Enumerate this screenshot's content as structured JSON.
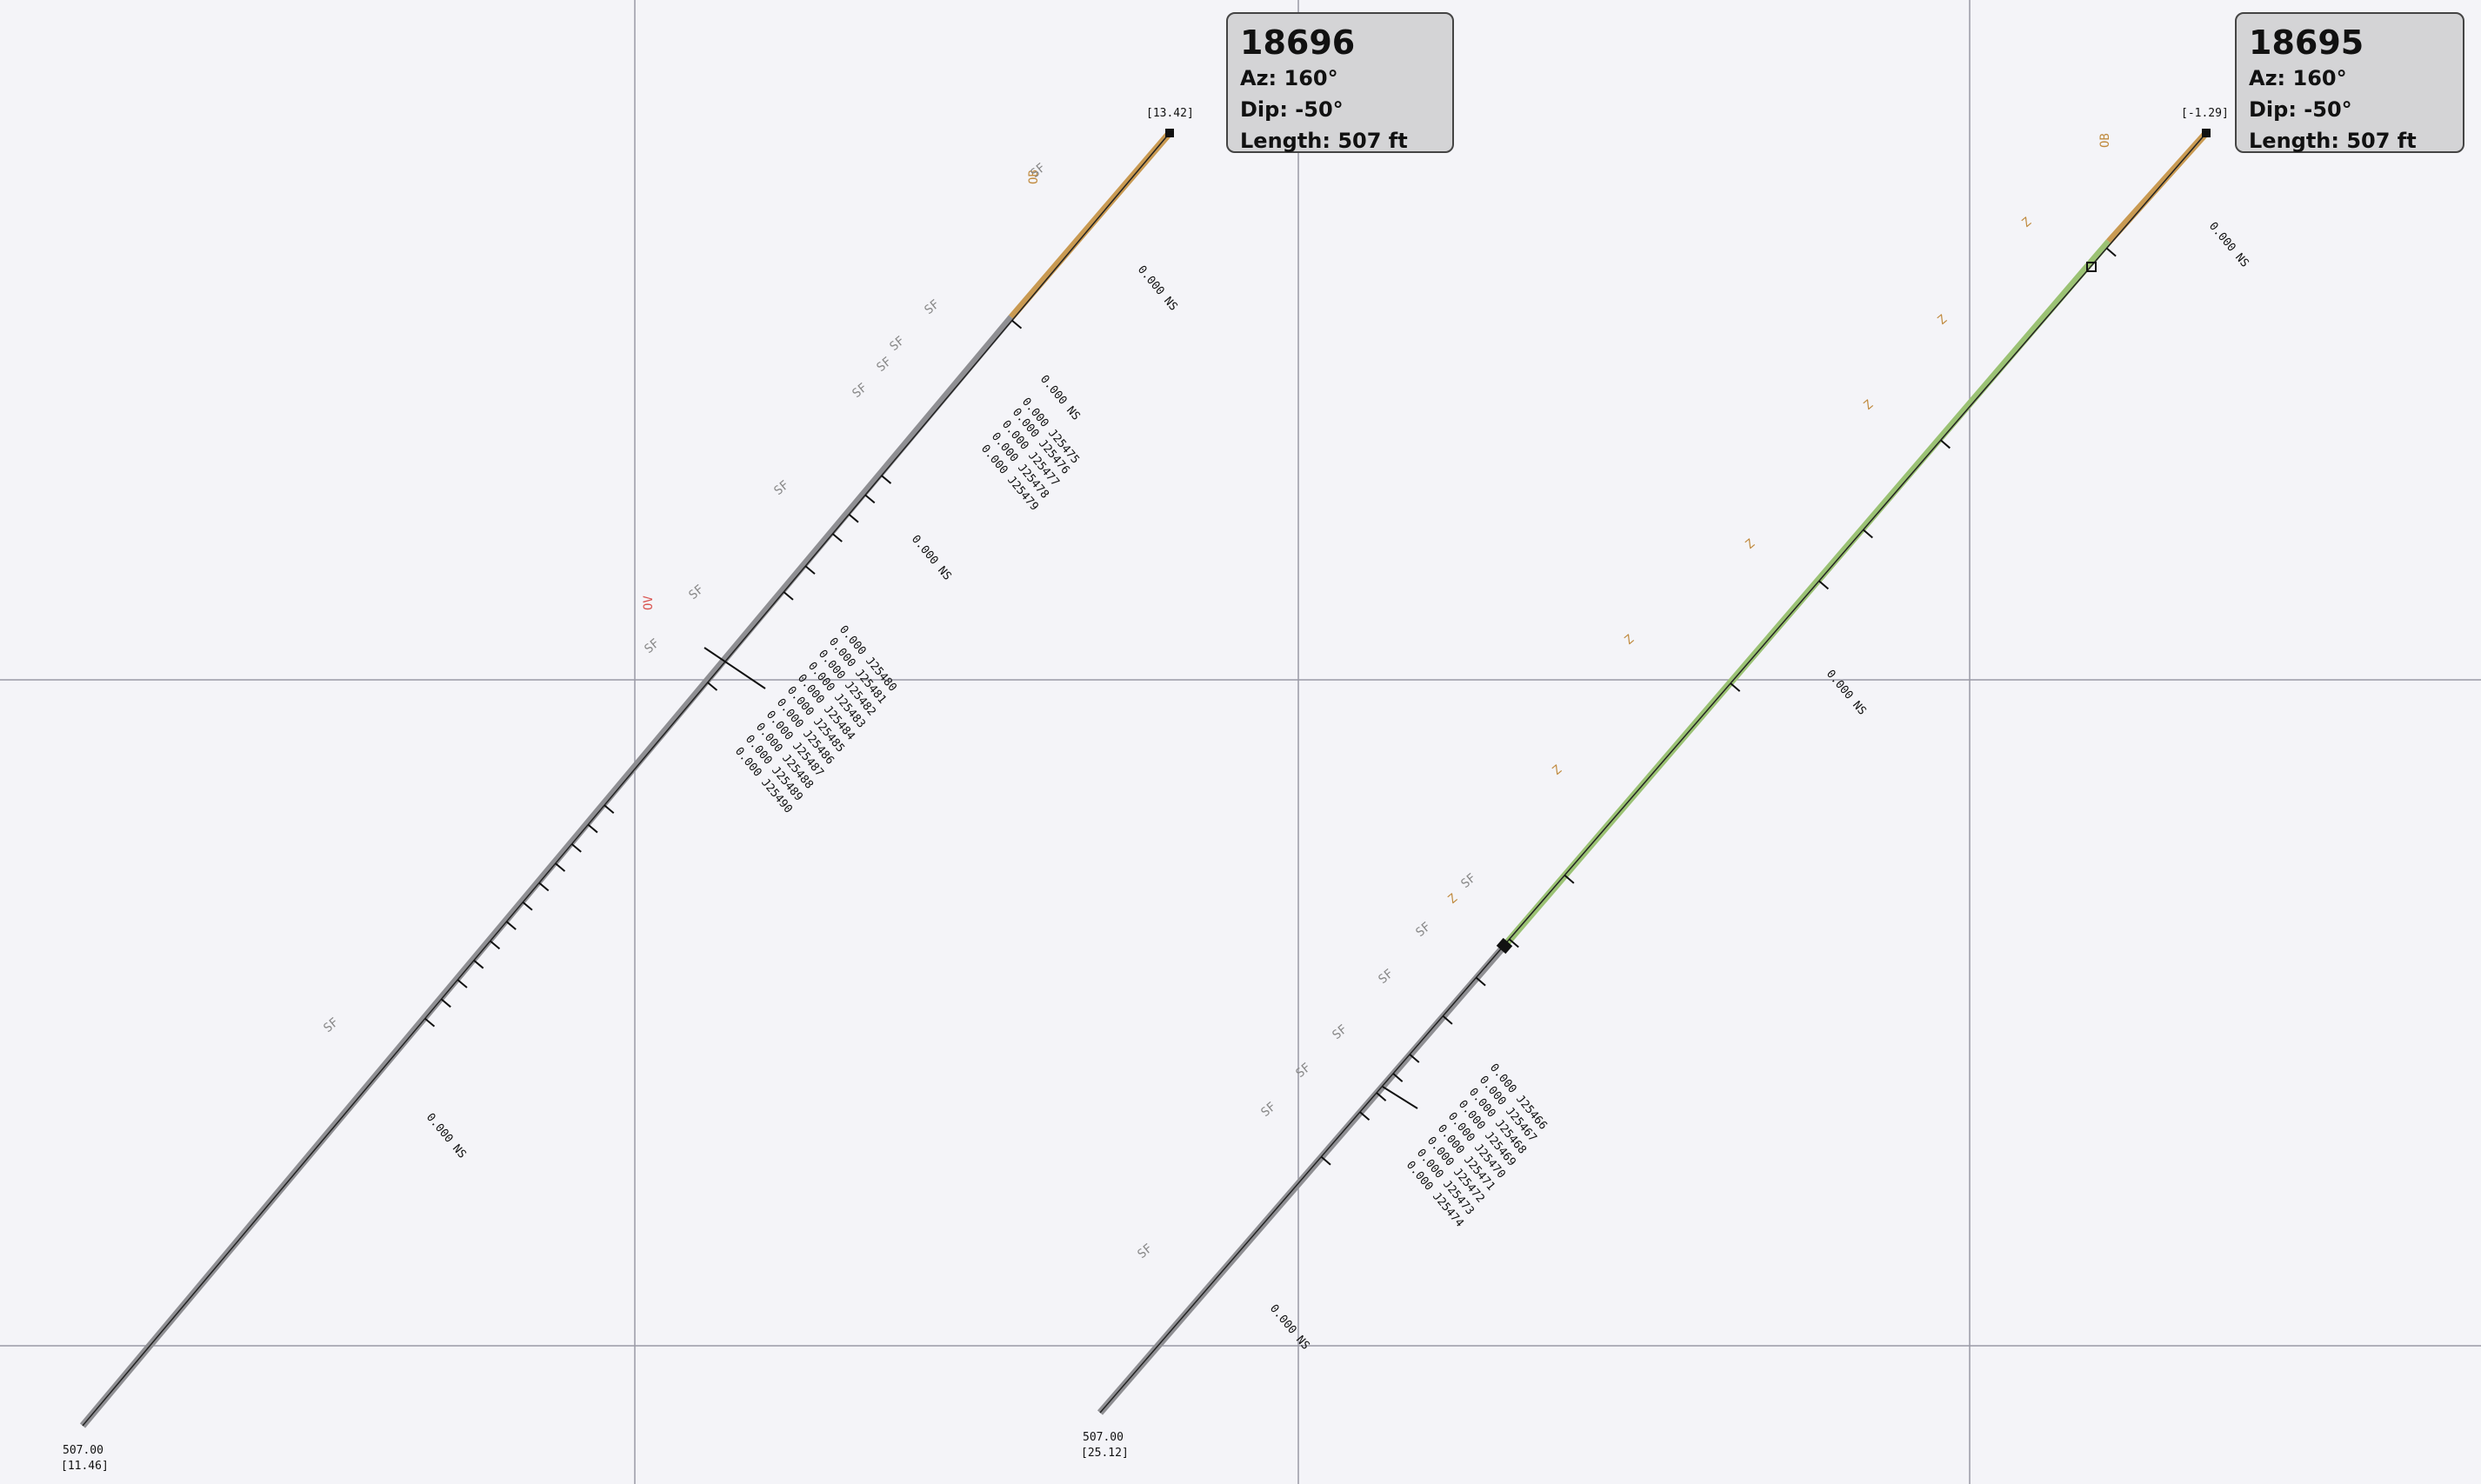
{
  "grid": {
    "color": "#9a9aa6"
  },
  "holes": [
    {
      "id": "18696",
      "az": "Az: 160°",
      "dip": "Dip: -50°",
      "length": "Length: 507 ft",
      "collar_label": "[13.42]",
      "end_depth": "507.00",
      "end_elev": "[11.46]",
      "colors": {
        "top": "#c99a52",
        "body": "#8f8f93"
      },
      "side_labels": [
        "SF",
        "SF",
        "SF",
        "SF",
        "SF",
        "SF",
        "SF",
        "SF",
        "SF"
      ],
      "red_label": "OV",
      "orange_label": "OB",
      "ns_labels": [
        "0.000 NS",
        "0.000 NS",
        "0.000 NS",
        "0.000 NS"
      ],
      "samples": [
        "0.000 J25475",
        "0.000 J25476",
        "0.000 J25477",
        "0.000 J25478",
        "0.000 J25479"
      ],
      "samples2": [
        "0.000 J25480",
        "0.000 J25481",
        "0.000 J25482",
        "0.000 J25483",
        "0.000 J25484",
        "0.000 J25485",
        "0.000 J25486",
        "0.000 J25487",
        "0.000 J25488",
        "0.000 J25489",
        "0.000 J25490"
      ]
    },
    {
      "id": "18695",
      "az": "Az: 160°",
      "dip": "Dip: -50°",
      "length": "Length: 507 ft",
      "collar_label": "[-1.29]",
      "end_depth": "507.00",
      "end_elev": "[25.12]",
      "colors": {
        "top": "#c99a52",
        "mid": "#9bc274",
        "body": "#8f8f93"
      },
      "side_labels": [
        "SF",
        "SF",
        "SF",
        "SF",
        "SF",
        "SF",
        "SF"
      ],
      "orange_label": "OB",
      "z_labels": [
        "Z",
        "Z",
        "Z",
        "Z",
        "Z",
        "Z",
        "Z"
      ],
      "ns_labels": [
        "0.000 NS",
        "0.000 NS",
        "0.000 NS"
      ],
      "samples": [
        "0.000 J25466",
        "0.000 J25467",
        "0.000 J25468",
        "0.000 J25469",
        "0.000 J25470",
        "0.000 J25471",
        "0.000 J25472",
        "0.000 J25473",
        "0.000 J25474"
      ]
    }
  ]
}
